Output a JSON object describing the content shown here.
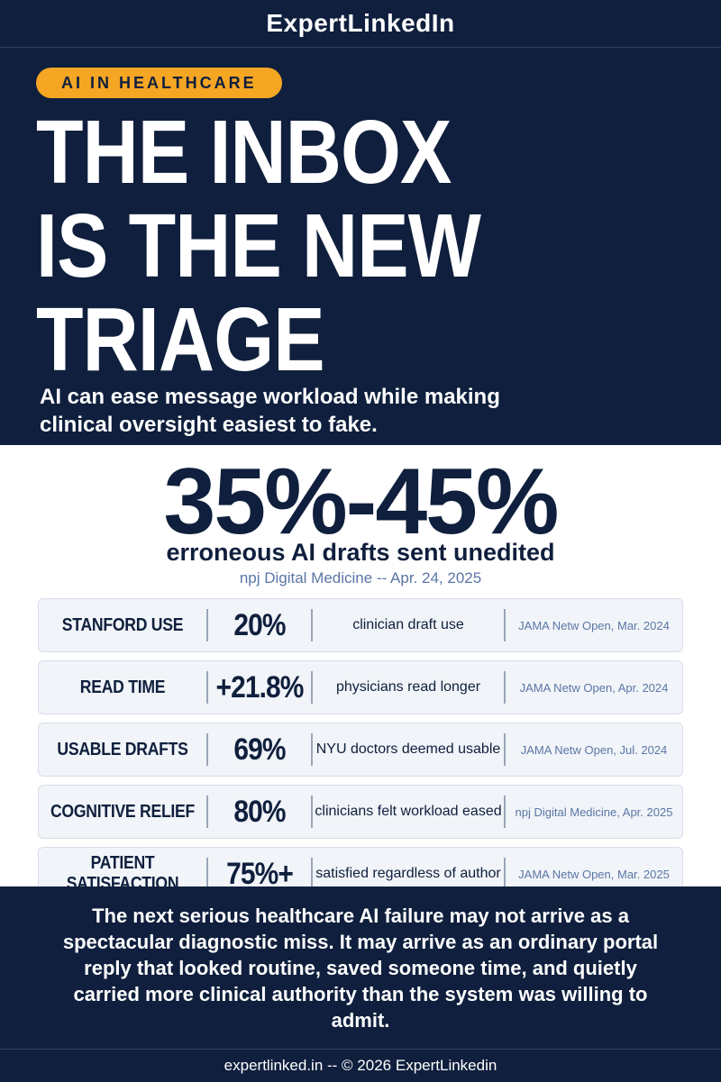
{
  "brand": "ExpertLinkedIn",
  "hero": {
    "tag": "AI IN HEALTHCARE",
    "headline": "THE INBOX\nIS THE NEW\nTRIAGE",
    "subhead": "AI can ease message workload while making clinical oversight easiest to fake."
  },
  "highlight": {
    "value": "35%-45%",
    "caption": "erroneous AI drafts sent unedited",
    "source": "npj Digital Medicine -- Apr. 24, 2025"
  },
  "rows": [
    {
      "label": "STANFORD USE",
      "value": "20%",
      "desc": "clinician draft use",
      "source": "JAMA Netw Open, Mar. 2024"
    },
    {
      "label": "READ TIME",
      "value": "+21.8%",
      "desc": "physicians read longer",
      "source": "JAMA Netw Open, Apr. 2024"
    },
    {
      "label": "USABLE DRAFTS",
      "value": "69%",
      "desc": "NYU doctors deemed usable",
      "source": "JAMA Netw Open, Jul. 2024"
    },
    {
      "label": "COGNITIVE RELIEF",
      "value": "80%",
      "desc": "clinicians felt workload eased",
      "source": "npj Digital Medicine, Apr. 2025"
    },
    {
      "label": "PATIENT SATISFACTION",
      "value": "75%+",
      "desc": "satisfied regardless of author",
      "source": "JAMA Netw Open, Mar. 2025"
    }
  ],
  "closing": "The next serious healthcare AI failure may not arrive as a spectacular diagnostic miss. It may arrive as an ordinary portal reply that looked routine, saved someone time, and quietly carried more clinical authority than the system was willing to admit.",
  "footer": "expertlinked.in -- © 2026 ExpertLinkedin",
  "colors": {
    "navy": "#0f1f3d",
    "accent": "#f5a623",
    "source_blue": "#5a76a6",
    "row_bg": "#f1f4f8"
  }
}
